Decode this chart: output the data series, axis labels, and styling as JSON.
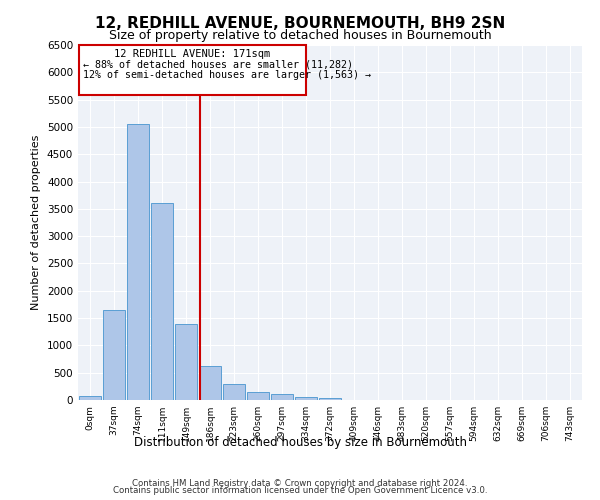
{
  "title": "12, REDHILL AVENUE, BOURNEMOUTH, BH9 2SN",
  "subtitle": "Size of property relative to detached houses in Bournemouth",
  "xlabel": "Distribution of detached houses by size in Bournemouth",
  "ylabel": "Number of detached properties",
  "footer1": "Contains HM Land Registry data © Crown copyright and database right 2024.",
  "footer2": "Contains public sector information licensed under the Open Government Licence v3.0.",
  "property_label": "12 REDHILL AVENUE: 171sqm",
  "annotation_line1": "← 88% of detached houses are smaller (11,282)",
  "annotation_line2": "12% of semi-detached houses are larger (1,563) →",
  "bin_labels": [
    "0sqm",
    "37sqm",
    "74sqm",
    "111sqm",
    "149sqm",
    "186sqm",
    "223sqm",
    "260sqm",
    "297sqm",
    "334sqm",
    "372sqm",
    "409sqm",
    "446sqm",
    "483sqm",
    "520sqm",
    "557sqm",
    "594sqm",
    "632sqm",
    "669sqm",
    "706sqm",
    "743sqm"
  ],
  "bar_values": [
    75,
    1650,
    5060,
    3600,
    1400,
    620,
    290,
    140,
    105,
    60,
    30,
    0,
    0,
    0,
    0,
    0,
    0,
    0,
    0,
    0,
    0
  ],
  "bar_color": "#aec6e8",
  "bar_edge_color": "#5a9fd4",
  "vline_color": "#cc0000",
  "box_color": "#cc0000",
  "background_color": "#eef2f8",
  "ylim": [
    0,
    6500
  ],
  "yticks": [
    0,
    500,
    1000,
    1500,
    2000,
    2500,
    3000,
    3500,
    4000,
    4500,
    5000,
    5500,
    6000,
    6500
  ]
}
